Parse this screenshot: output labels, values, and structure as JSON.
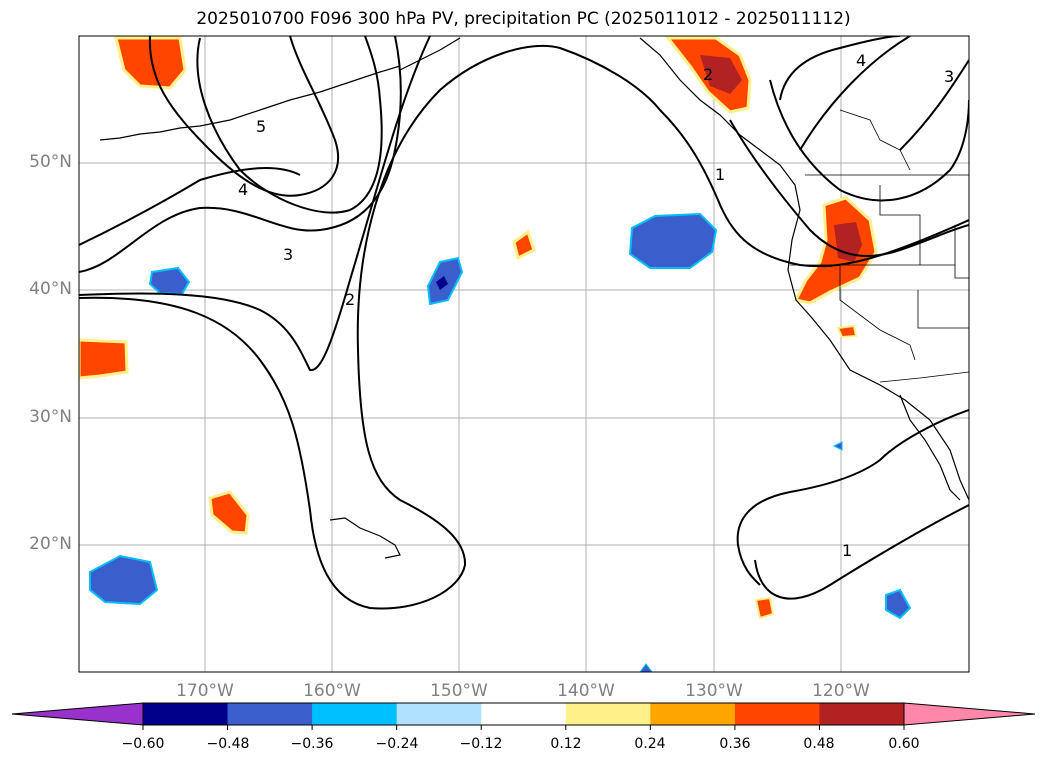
{
  "title": "2025010700 F096 300 hPa PV, precipitation PC (2025011012 - 2025011112)",
  "lat_ticks": [
    "50°N",
    "40°N",
    "30°N",
    "20°N"
  ],
  "lon_ticks": [
    "170°W",
    "160°W",
    "150°W",
    "140°W",
    "130°W",
    "120°W"
  ],
  "pv_contour_labels": [
    "5",
    "4",
    "3",
    "2",
    "1",
    "1",
    "2",
    "3",
    "4"
  ],
  "colorbar": {
    "colors": [
      "#9932cc",
      "#00008b",
      "#3a5fcd",
      "#00bfff",
      "#b0e2ff",
      "#ffffff",
      "#fff08a",
      "#ffa500",
      "#ff4500",
      "#b22222",
      "#ff88aa"
    ],
    "tick_labels": [
      "−0.60",
      "−0.48",
      "−0.36",
      "−0.24",
      "−0.12",
      "0.12",
      "0.24",
      "0.36",
      "0.48",
      "0.60"
    ]
  },
  "colors": {
    "positive_strong": "#ff4500",
    "positive_max": "#b22222",
    "negative_strong": "#3a5fcd",
    "negative_max": "#00008b",
    "grid": "#b0b0b0",
    "contour": "#000000"
  }
}
